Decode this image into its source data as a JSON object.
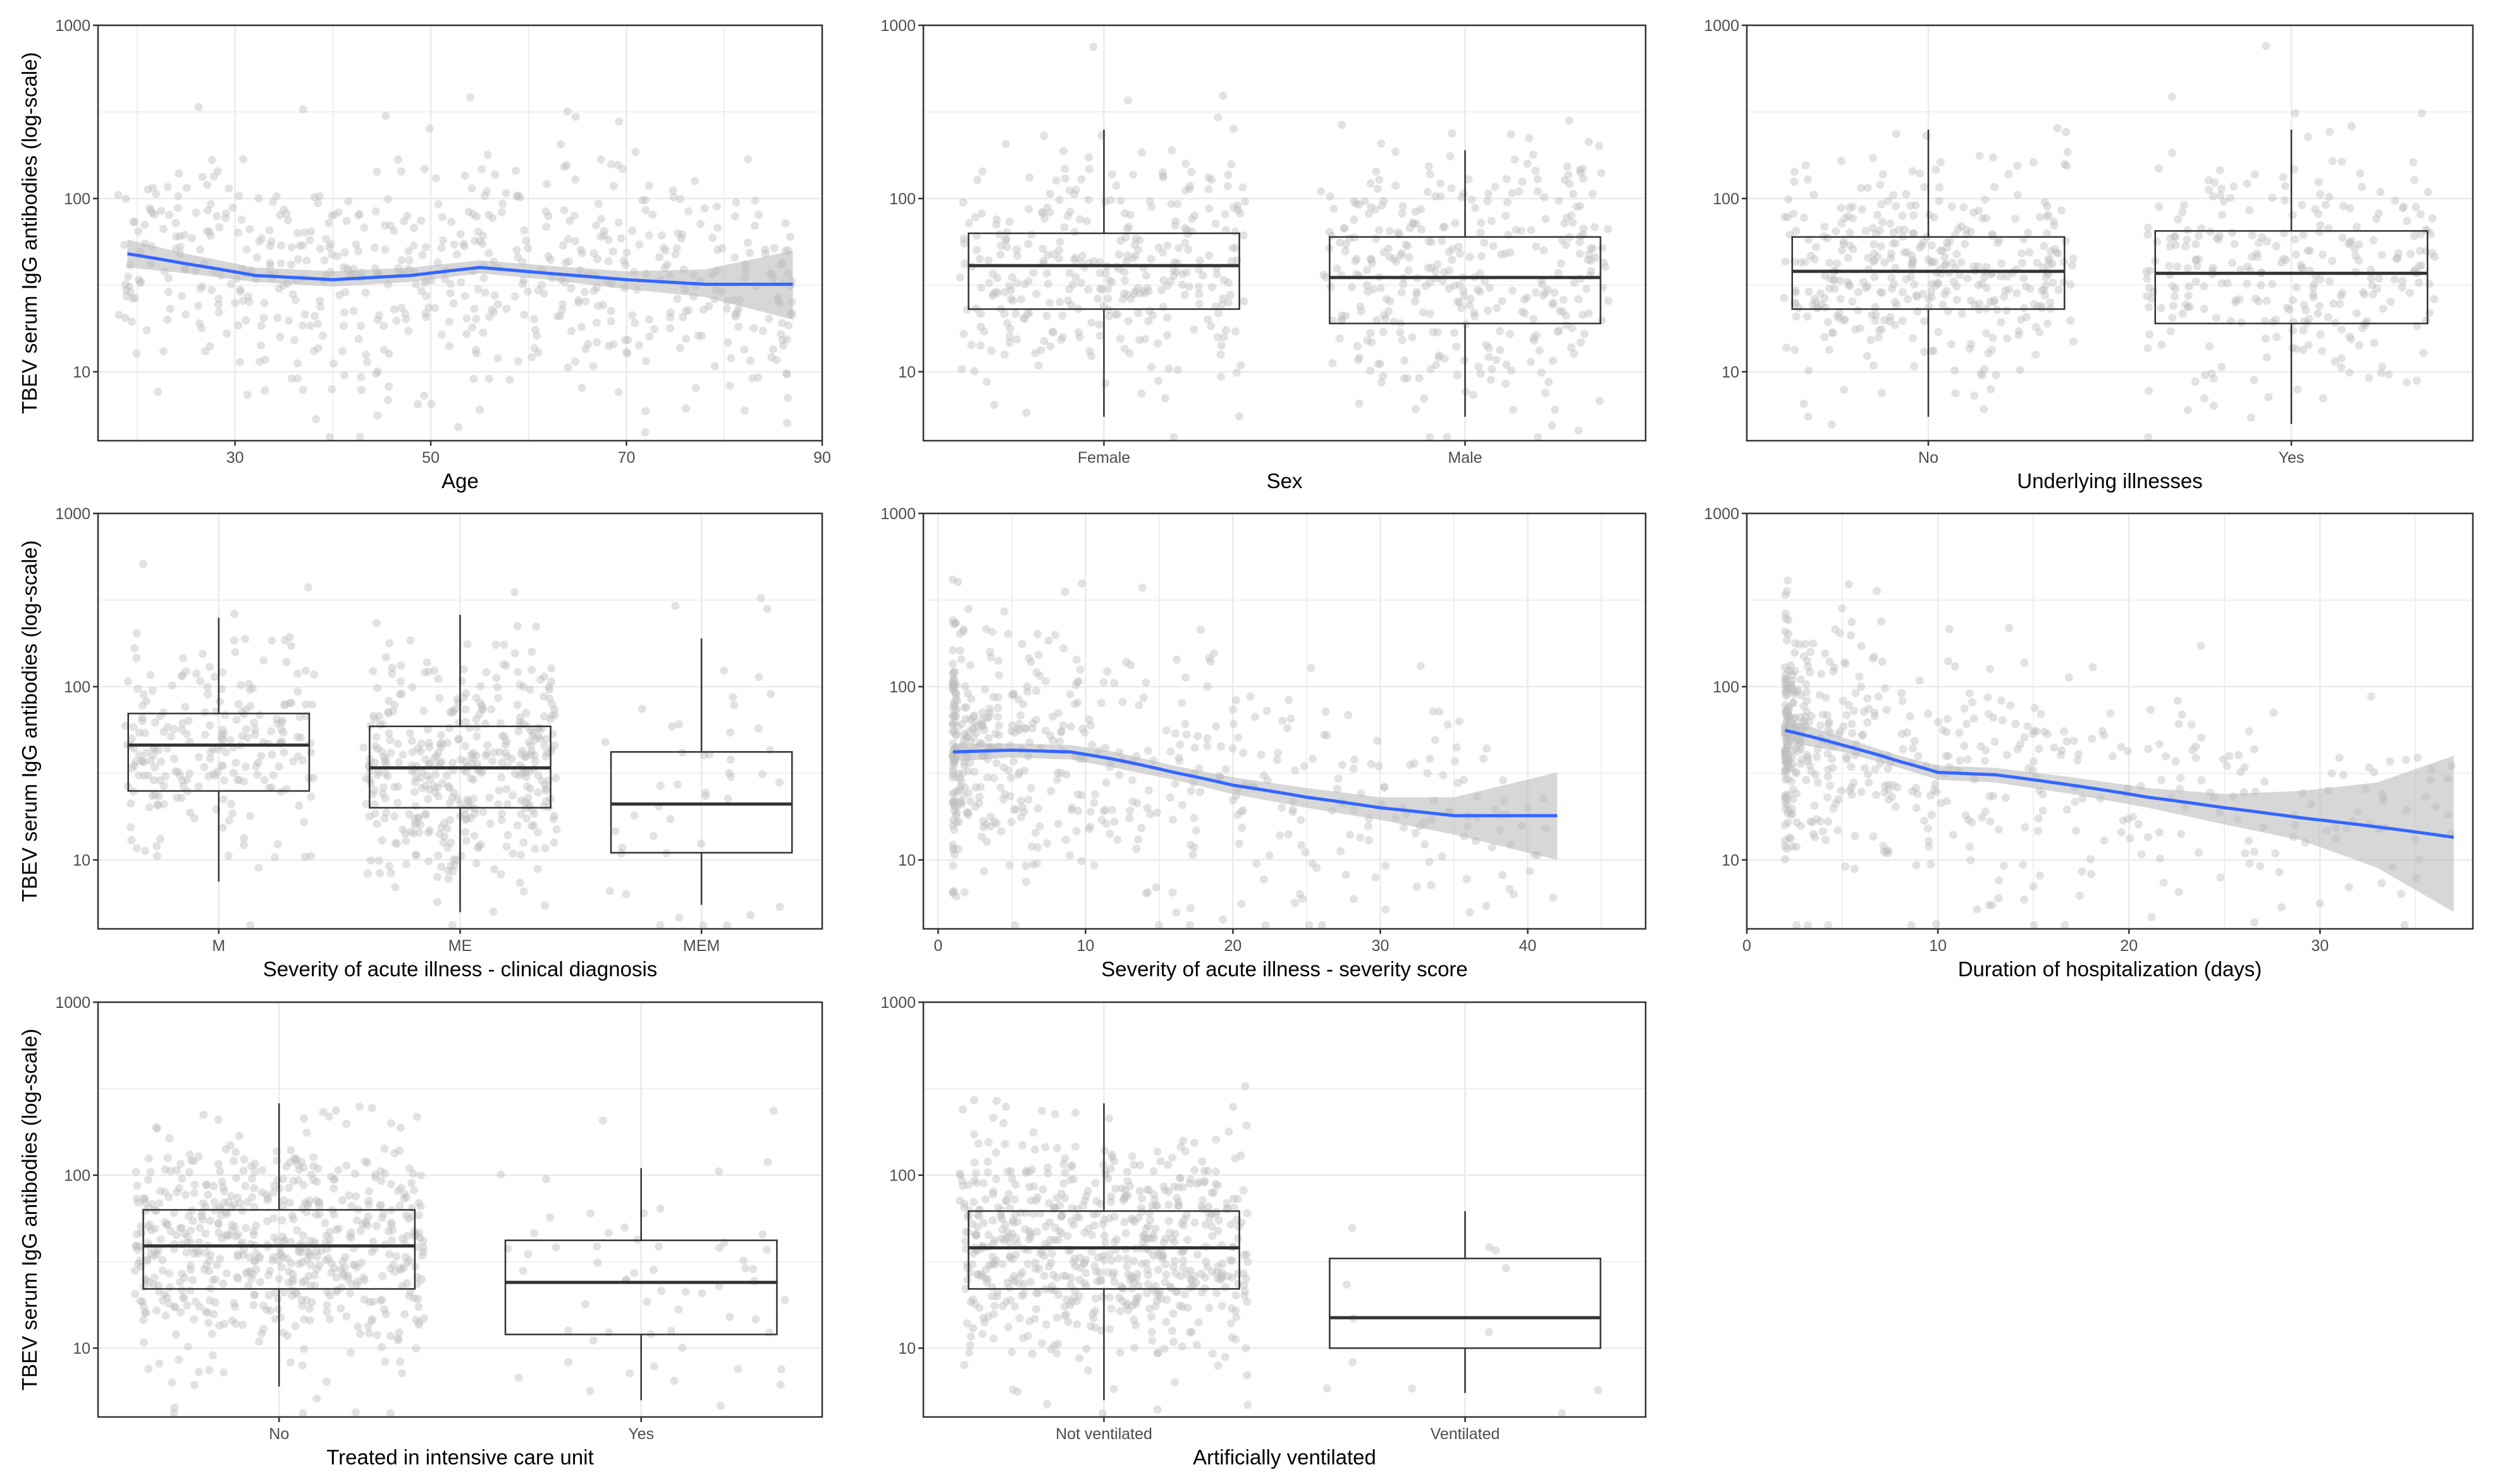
{
  "figure": {
    "ylabel": "TBEV serum IgG antibodies (log-scale)",
    "colors": {
      "smooth_line": "#3366ff",
      "ribbon": "#bdbdbd",
      "points": "#bfbfbf",
      "grid": "#ebebeb",
      "box": "#333333"
    }
  },
  "chart_data": [
    {
      "id": "age",
      "type": "scatter",
      "title": "",
      "xlabel": "Age",
      "ylabel": "TBEV serum IgG antibodies (log-scale)",
      "yscale": "log10",
      "ylim": [
        4,
        1000
      ],
      "yticks": [
        10,
        100,
        1000
      ],
      "ytick_labels": [
        "10",
        "100",
        "1000"
      ],
      "xlim": [
        16,
        90
      ],
      "xticks": [
        30,
        50,
        70,
        90
      ],
      "xtick_labels": [
        "30",
        "50",
        "70",
        "90"
      ],
      "x_range": [
        18,
        87
      ],
      "smooth": {
        "x": [
          19,
          25,
          32,
          40,
          48,
          55,
          62,
          70,
          78,
          87
        ],
        "y": [
          48,
          42,
          36,
          34,
          36,
          40,
          37,
          34,
          32,
          32
        ]
      },
      "ribbon": {
        "x": [
          19,
          25,
          32,
          40,
          48,
          55,
          62,
          70,
          78,
          87
        ],
        "lower": [
          40,
          37,
          33,
          31,
          33,
          37,
          34,
          30,
          27,
          20
        ],
        "upper": [
          58,
          48,
          40,
          38,
          40,
          44,
          41,
          38,
          39,
          50
        ]
      },
      "grid": true,
      "legend": "none"
    },
    {
      "id": "sex",
      "type": "box",
      "title": "",
      "xlabel": "Sex",
      "ylabel": "",
      "yscale": "log10",
      "ylim": [
        4,
        1000
      ],
      "yticks": [
        10,
        100,
        1000
      ],
      "ytick_labels": [
        "10",
        "100",
        "1000"
      ],
      "categories": [
        "Female",
        "Male"
      ],
      "boxes": [
        {
          "whisker_low": 5.5,
          "q1": 23,
          "median": 41,
          "q3": 63,
          "whisker_high": 250,
          "n_points": 330
        },
        {
          "whisker_low": 5.5,
          "q1": 19,
          "median": 35,
          "q3": 60,
          "whisker_high": 190,
          "n_points": 340
        }
      ],
      "grid": true,
      "legend": "none"
    },
    {
      "id": "illnesses",
      "type": "box",
      "title": "",
      "xlabel": "Underlying illnesses",
      "ylabel": "",
      "yscale": "log10",
      "ylim": [
        4,
        1000
      ],
      "yticks": [
        10,
        100,
        1000
      ],
      "ytick_labels": [
        "10",
        "100",
        "1000"
      ],
      "categories": [
        "No",
        "Yes"
      ],
      "boxes": [
        {
          "whisker_low": 5.5,
          "q1": 23,
          "median": 38,
          "q3": 60,
          "whisker_high": 250,
          "n_points": 380
        },
        {
          "whisker_low": 5,
          "q1": 19,
          "median": 37,
          "q3": 65,
          "whisker_high": 250,
          "n_points": 290
        }
      ],
      "grid": true,
      "legend": "none"
    },
    {
      "id": "diagnosis",
      "type": "box",
      "title": "",
      "xlabel": "Severity of acute illness - clinical diagnosis",
      "ylabel": "TBEV serum IgG antibodies (log-scale)",
      "yscale": "log10",
      "ylim": [
        4,
        1000
      ],
      "yticks": [
        10,
        100,
        1000
      ],
      "ytick_labels": [
        "10",
        "100",
        "1000"
      ],
      "categories": [
        "M",
        "ME",
        "MEM"
      ],
      "boxes": [
        {
          "whisker_low": 7.5,
          "q1": 25,
          "median": 46,
          "q3": 70,
          "whisker_high": 250,
          "n_points": 230
        },
        {
          "whisker_low": 5,
          "q1": 20,
          "median": 34,
          "q3": 59,
          "whisker_high": 260,
          "n_points": 400
        },
        {
          "whisker_low": 5.5,
          "q1": 11,
          "median": 21,
          "q3": 42,
          "whisker_high": 190,
          "n_points": 45
        }
      ],
      "grid": true,
      "legend": "none"
    },
    {
      "id": "score",
      "type": "scatter",
      "title": "",
      "xlabel": "Severity of acute illness - severity score",
      "ylabel": "",
      "yscale": "log10",
      "ylim": [
        4,
        1000
      ],
      "yticks": [
        10,
        100,
        1000
      ],
      "ytick_labels": [
        "10",
        "100",
        "1000"
      ],
      "xlim": [
        -1,
        48
      ],
      "xticks": [
        0,
        10,
        20,
        30,
        40
      ],
      "xtick_labels": [
        "0",
        "10",
        "20",
        "30",
        "40"
      ],
      "x_range": [
        1,
        42
      ],
      "smooth": {
        "x": [
          1,
          5,
          9,
          12,
          16,
          20,
          25,
          30,
          35,
          42
        ],
        "y": [
          42,
          43,
          42,
          38,
          32,
          27,
          23,
          20,
          18,
          18
        ]
      },
      "ribbon": {
        "x": [
          1,
          5,
          9,
          12,
          16,
          20,
          25,
          30,
          35,
          42
        ],
        "lower": [
          37,
          39,
          38,
          34,
          29,
          24,
          20,
          17,
          14,
          10
        ],
        "upper": [
          47,
          47,
          46,
          42,
          35,
          30,
          26,
          23,
          23,
          32
        ]
      },
      "grid": true,
      "legend": "none"
    },
    {
      "id": "hospitalization",
      "type": "scatter",
      "title": "",
      "xlabel": "Duration of hospitalization (days)",
      "ylabel": "",
      "yscale": "log10",
      "ylim": [
        4,
        1000
      ],
      "yticks": [
        10,
        100,
        1000
      ],
      "ytick_labels": [
        "10",
        "100",
        "1000"
      ],
      "xlim": [
        0,
        38
      ],
      "xticks": [
        0,
        10,
        20,
        30
      ],
      "xtick_labels": [
        "0",
        "10",
        "20",
        "30"
      ],
      "x_range": [
        2,
        37
      ],
      "smooth": {
        "x": [
          2,
          5,
          8,
          10,
          13,
          17,
          21,
          25,
          29,
          33,
          37
        ],
        "y": [
          56,
          46,
          37,
          32,
          31,
          27,
          23,
          20,
          17.5,
          15.5,
          13.5
        ]
      },
      "ribbon": {
        "x": [
          2,
          5,
          8,
          10,
          13,
          17,
          21,
          25,
          29,
          33,
          37
        ],
        "lower": [
          48,
          42,
          34,
          29,
          28,
          24,
          20,
          16,
          13,
          9,
          5
        ],
        "upper": [
          66,
          51,
          40,
          35,
          34,
          30,
          26,
          24,
          25,
          28,
          40
        ]
      },
      "grid": true,
      "legend": "none"
    },
    {
      "id": "icu",
      "type": "box",
      "title": "",
      "xlabel": "Treated in intensive care unit",
      "ylabel": "TBEV serum IgG antibodies (log-scale)",
      "yscale": "log10",
      "ylim": [
        4,
        1000
      ],
      "yticks": [
        10,
        100,
        1000
      ],
      "ytick_labels": [
        "10",
        "100",
        "1000"
      ],
      "categories": [
        "No",
        "Yes"
      ],
      "boxes": [
        {
          "whisker_low": 6,
          "q1": 22,
          "median": 39,
          "q3": 63,
          "whisker_high": 260,
          "n_points": 600
        },
        {
          "whisker_low": 5,
          "q1": 12,
          "median": 24,
          "q3": 42,
          "whisker_high": 110,
          "n_points": 60
        }
      ],
      "grid": true,
      "legend": "none"
    },
    {
      "id": "ventilated",
      "type": "box",
      "title": "",
      "xlabel": "Artificially ventilated",
      "ylabel": "",
      "yscale": "log10",
      "ylim": [
        4,
        1000
      ],
      "yticks": [
        10,
        100,
        1000
      ],
      "ytick_labels": [
        "10",
        "100",
        "1000"
      ],
      "categories": [
        "Not ventilated",
        "Ventilated"
      ],
      "boxes": [
        {
          "whisker_low": 5,
          "q1": 22,
          "median": 38,
          "q3": 62,
          "whisker_high": 260,
          "n_points": 640
        },
        {
          "whisker_low": 5.5,
          "q1": 10,
          "median": 15,
          "q3": 33,
          "whisker_high": 62,
          "n_points": 12
        }
      ],
      "grid": true,
      "legend": "none"
    }
  ]
}
